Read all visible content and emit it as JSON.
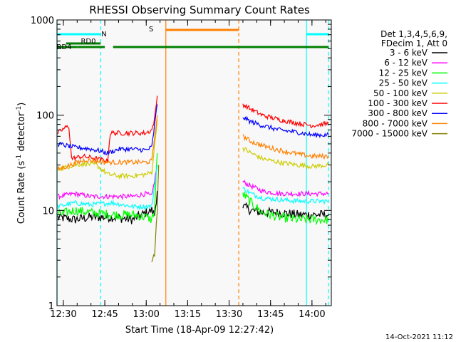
{
  "chart_data": {
    "type": "line",
    "title": "RHESSI Observing Summary Count Rates",
    "xlabel": "Start Time (18-Apr-09 12:27:42)",
    "ylabel_main": "Count Rate (s",
    "ylabel_sup1": "-1",
    "ylabel_mid": " detector",
    "ylabel_sup2": "-1",
    "ylabel_end": ")",
    "y_scale": "log",
    "ylim": [
      1,
      1000
    ],
    "xlim": [
      "12:27:42",
      "14:07:00"
    ],
    "xlim_minutes": [
      747.7,
      847
    ],
    "x_ticks": [
      "12:30",
      "12:45",
      "13:00",
      "13:15",
      "13:30",
      "13:45",
      "14:00"
    ],
    "y_ticks": [
      "1",
      "10",
      "100",
      "1000"
    ],
    "legend_header": [
      "Det 1,3,4,5,6,9,",
      "FDecim 1, Att 0"
    ],
    "legend_placement": "right",
    "timestamp": "14-Oct-2021 11:12",
    "series": [
      {
        "name": "3 - 6 keV",
        "color": "#000000",
        "before": [
          [
            748,
            8.5
          ],
          [
            754,
            8.0
          ],
          [
            760,
            8.5
          ],
          [
            768,
            8.5
          ],
          [
            775,
            8.0
          ],
          [
            780,
            9.5
          ],
          [
            782,
            10
          ],
          [
            783,
            9
          ],
          [
            784,
            16
          ]
        ],
        "after": [
          [
            815,
            11
          ],
          [
            818,
            10
          ],
          [
            822,
            9.5
          ],
          [
            828,
            9.5
          ],
          [
            835,
            9.0
          ],
          [
            840,
            9.0
          ],
          [
            846,
            9.0
          ]
        ]
      },
      {
        "name": "6 - 12 keV",
        "color": "#ff00ff",
        "before": [
          [
            748,
            14
          ],
          [
            754,
            15
          ],
          [
            760,
            14
          ],
          [
            768,
            14
          ],
          [
            775,
            14
          ],
          [
            780,
            15
          ],
          [
            782,
            14
          ],
          [
            784,
            30
          ]
        ],
        "after": [
          [
            815,
            20
          ],
          [
            818,
            18
          ],
          [
            822,
            16
          ],
          [
            828,
            15
          ],
          [
            835,
            15
          ],
          [
            840,
            15
          ],
          [
            846,
            15
          ]
        ]
      },
      {
        "name": "12 - 25 keV",
        "color": "#00ff00",
        "before": [
          [
            748,
            9
          ],
          [
            754,
            10
          ],
          [
            760,
            9.5
          ],
          [
            768,
            9
          ],
          [
            775,
            9
          ],
          [
            780,
            8.5
          ],
          [
            782,
            8
          ],
          [
            783,
            10
          ],
          [
            784,
            40
          ]
        ],
        "after": [
          [
            815,
            15
          ],
          [
            818,
            12
          ],
          [
            822,
            9.5
          ],
          [
            828,
            8.5
          ],
          [
            835,
            8.0
          ],
          [
            840,
            8.0
          ],
          [
            846,
            8.0
          ]
        ]
      },
      {
        "name": "25 - 50 keV",
        "color": "#00ffff",
        "before": [
          [
            748,
            11
          ],
          [
            754,
            12
          ],
          [
            760,
            11.5
          ],
          [
            768,
            12
          ],
          [
            775,
            11
          ],
          [
            780,
            11
          ],
          [
            782,
            11
          ],
          [
            784,
            30
          ]
        ],
        "after": [
          [
            815,
            17
          ],
          [
            818,
            15
          ],
          [
            822,
            13.5
          ],
          [
            828,
            13
          ],
          [
            835,
            12.5
          ],
          [
            840,
            12.5
          ],
          [
            846,
            12.5
          ]
        ]
      },
      {
        "name": "50 - 100 keV",
        "color": "#cccc00",
        "before": [
          [
            748,
            27
          ],
          [
            754,
            30
          ],
          [
            758,
            31
          ],
          [
            762,
            30
          ],
          [
            766,
            24
          ],
          [
            770,
            23
          ],
          [
            775,
            23
          ],
          [
            780,
            24
          ],
          [
            782,
            25
          ],
          [
            784,
            90
          ]
        ],
        "after": [
          [
            815,
            45
          ],
          [
            818,
            40
          ],
          [
            822,
            35
          ],
          [
            828,
            32
          ],
          [
            835,
            30
          ],
          [
            840,
            29
          ],
          [
            846,
            30
          ]
        ]
      },
      {
        "name": "100 - 300 keV",
        "color": "#ff0000",
        "before": [
          [
            748,
            65
          ],
          [
            751,
            75
          ],
          [
            752,
            76
          ],
          [
            753,
            35
          ],
          [
            757,
            37
          ],
          [
            762,
            35
          ],
          [
            766,
            33
          ],
          [
            767,
            65
          ],
          [
            770,
            65
          ],
          [
            775,
            65
          ],
          [
            780,
            65
          ],
          [
            782,
            70
          ],
          [
            783,
            90
          ],
          [
            784,
            160
          ]
        ],
        "after": [
          [
            815,
            130
          ],
          [
            818,
            115
          ],
          [
            822,
            100
          ],
          [
            828,
            90
          ],
          [
            835,
            82
          ],
          [
            840,
            78
          ],
          [
            846,
            82
          ]
        ]
      },
      {
        "name": "300 - 800 keV",
        "color": "#0000ff",
        "before": [
          [
            748,
            50
          ],
          [
            754,
            46
          ],
          [
            758,
            45
          ],
          [
            762,
            43
          ],
          [
            766,
            40
          ],
          [
            770,
            44
          ],
          [
            775,
            44
          ],
          [
            780,
            43
          ],
          [
            782,
            46
          ],
          [
            784,
            130
          ]
        ],
        "after": [
          [
            815,
            95
          ],
          [
            818,
            85
          ],
          [
            822,
            78
          ],
          [
            828,
            70
          ],
          [
            835,
            66
          ],
          [
            840,
            62
          ],
          [
            846,
            62
          ]
        ]
      },
      {
        "name": "800 - 7000 keV",
        "color": "#ff8000",
        "before": [
          [
            748,
            27
          ],
          [
            754,
            31
          ],
          [
            758,
            34
          ],
          [
            762,
            33
          ],
          [
            766,
            32
          ],
          [
            770,
            32
          ],
          [
            775,
            32
          ],
          [
            780,
            32
          ],
          [
            782,
            33
          ],
          [
            784,
            100
          ]
        ],
        "after": [
          [
            815,
            60
          ],
          [
            818,
            53
          ],
          [
            822,
            48
          ],
          [
            828,
            43
          ],
          [
            835,
            39
          ],
          [
            840,
            37
          ],
          [
            846,
            37
          ]
        ]
      },
      {
        "name": "7000 - 15000 keV",
        "color": "#808000",
        "before": [
          [
            782,
            3
          ],
          [
            783,
            3.5
          ],
          [
            784,
            10
          ],
          [
            784.5,
            30
          ]
        ],
        "after": []
      }
    ],
    "annotations": {
      "flags": [
        {
          "label": "N",
          "color": "#00ffff",
          "segments": [
            [
              747.7,
              763.5
            ],
            [
              838,
              846
            ]
          ]
        },
        {
          "label": "S",
          "color": "#ff8000",
          "segments": [
            [
              787,
              813.5
            ]
          ]
        },
        {
          "label": "RD0",
          "color": "#008000",
          "segments": [
            [
              751,
              763.5
            ]
          ]
        },
        {
          "label": "RD4",
          "color": "#008000",
          "segments": [
            [
              747.7,
              755
            ],
            [
              755,
              765
            ],
            [
              768,
              846
            ]
          ]
        }
      ],
      "lines": [
        {
          "t": 747.7,
          "color": "#00ffff",
          "style": "solid"
        },
        {
          "t": 763.5,
          "color": "#00ffff",
          "style": "dashed"
        },
        {
          "t": 787.1,
          "color": "#ff8000",
          "style": "solid"
        },
        {
          "t": 813.5,
          "color": "#ff8000",
          "style": "dashed"
        },
        {
          "t": 838.0,
          "color": "#00ffff",
          "style": "solid"
        },
        {
          "t": 846.0,
          "color": "#00ffff",
          "style": "dashed"
        }
      ]
    }
  }
}
